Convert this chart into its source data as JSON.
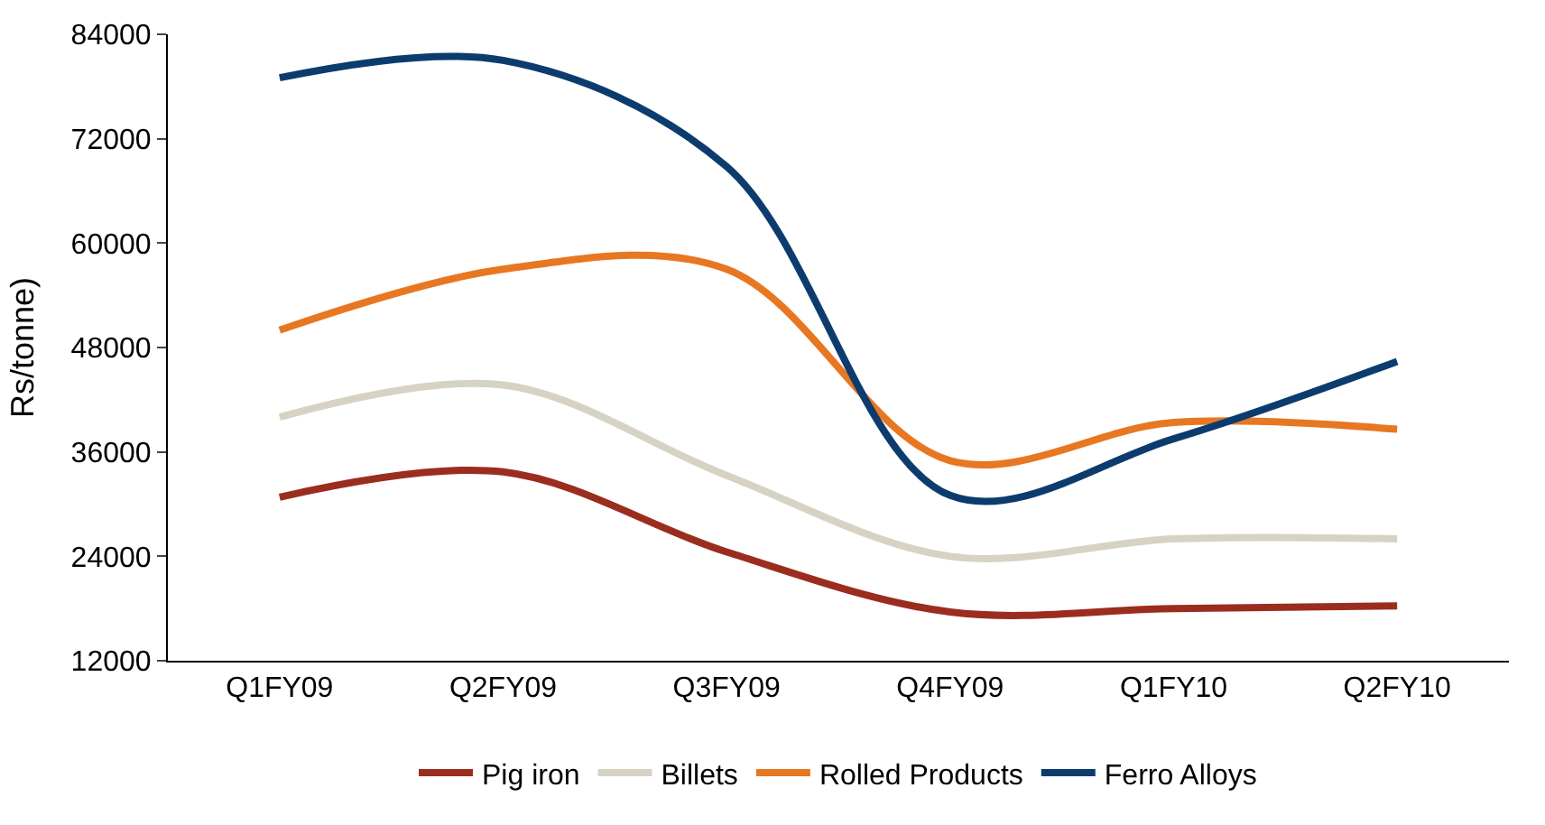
{
  "chart_data": {
    "type": "line",
    "ylabel": "Rs/tonne)",
    "categories": [
      "Q1FY09",
      "Q2FY09",
      "Q3FY09",
      "Q4FY09",
      "Q1FY10",
      "Q2FY10"
    ],
    "series": [
      {
        "name": "Pig iron",
        "color": "#9b2d1f",
        "values": [
          30800,
          33700,
          24500,
          17600,
          18000,
          18300
        ]
      },
      {
        "name": "Billets",
        "color": "#d6d3c4",
        "values": [
          40000,
          43700,
          33300,
          24000,
          26000,
          26000
        ]
      },
      {
        "name": "Rolled Products",
        "color": "#e87722",
        "values": [
          50000,
          57000,
          57000,
          35000,
          39400,
          38600
        ]
      },
      {
        "name": "Ferro Alloys",
        "color": "#0c3c6e",
        "values": [
          79000,
          81000,
          68800,
          31000,
          37500,
          46400
        ]
      }
    ],
    "ylim": [
      12000,
      84000
    ],
    "yticks": [
      12000,
      24000,
      36000,
      48000,
      60000,
      72000,
      84000
    ],
    "legend": "bottom",
    "marker": "none",
    "line_style": "solid"
  }
}
